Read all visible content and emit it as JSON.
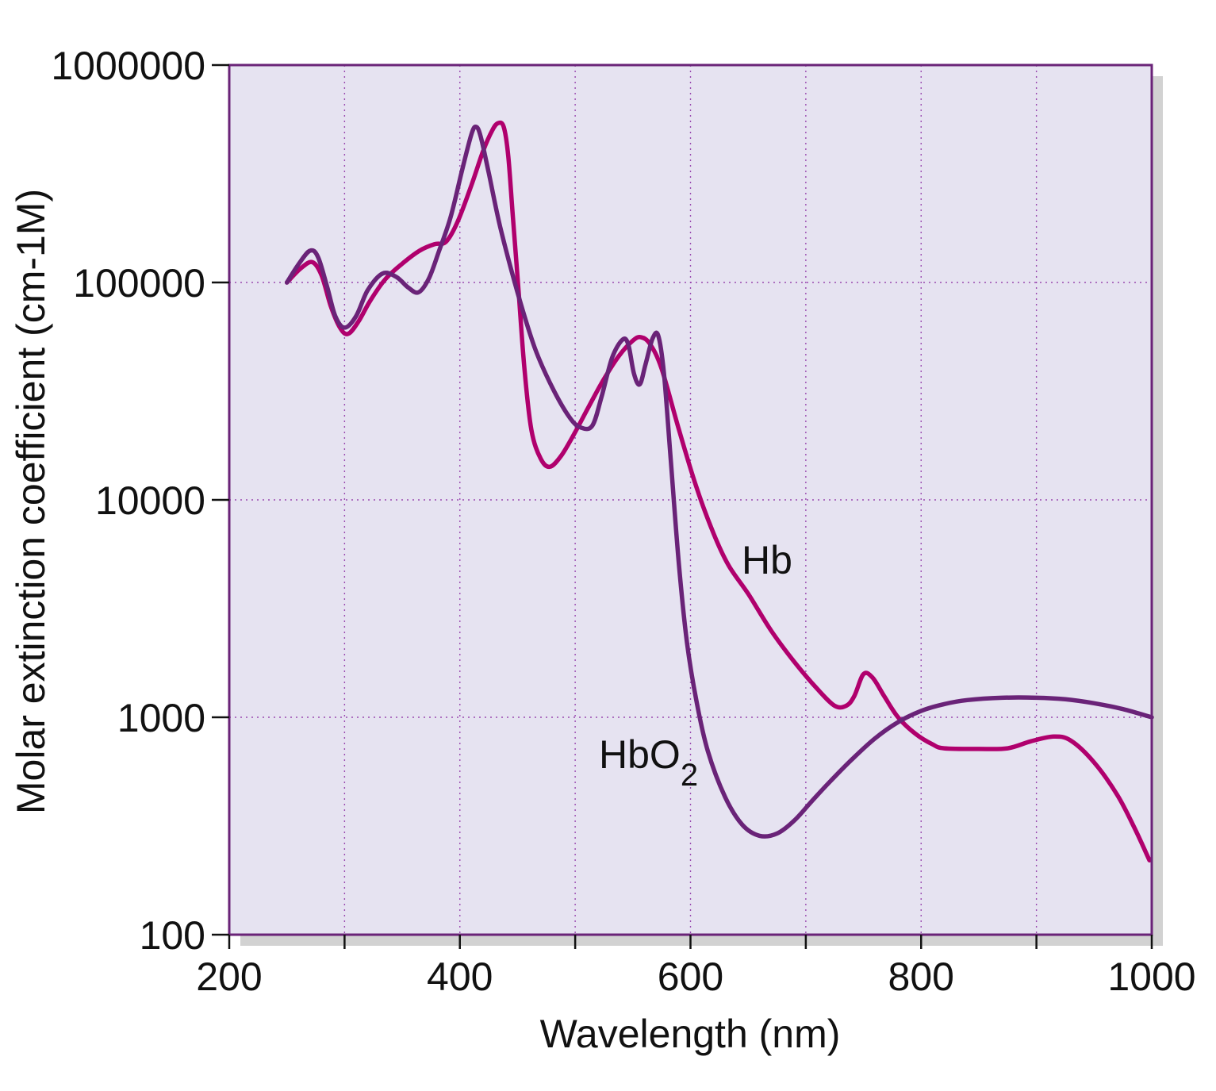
{
  "chart_data": {
    "type": "line",
    "title": "",
    "xlabel": "Wavelength (nm)",
    "ylabel": "Molar extinction coefficient (cm-1M)",
    "xlim": [
      200,
      1000
    ],
    "ylim": [
      100,
      1000000
    ],
    "yscale": "log",
    "grid": true,
    "legend": "none (series labeled directly on curves)",
    "x_ticks": [
      200,
      400,
      600,
      800,
      1000
    ],
    "x_tick_labels": [
      "200",
      "400",
      "600",
      "800",
      "1000"
    ],
    "x_minor_ticks": [
      300,
      500,
      700,
      900
    ],
    "y_ticks": [
      100,
      1000,
      10000,
      100000,
      1000000
    ],
    "y_tick_labels": [
      "100",
      "1000",
      "10000",
      "100000",
      "1000000"
    ],
    "colors": {
      "plot_background": "#e6e3f1",
      "frame": "#6a2378",
      "grid": "#9a4ab0",
      "shadow": "#d2d2d2"
    },
    "series": [
      {
        "name": "HbO2",
        "label_main": "HbO",
        "label_sub": "2",
        "color": "#6a2378",
        "points": [
          [
            250,
            100000
          ],
          [
            260,
            121000
          ],
          [
            270,
            140000
          ],
          [
            277,
            131000
          ],
          [
            285,
            95000
          ],
          [
            292,
            70000
          ],
          [
            300,
            62000
          ],
          [
            310,
            70000
          ],
          [
            320,
            92000
          ],
          [
            333,
            110000
          ],
          [
            345,
            106000
          ],
          [
            355,
            95000
          ],
          [
            364,
            90000
          ],
          [
            373,
            104000
          ],
          [
            382,
            140000
          ],
          [
            392,
            200000
          ],
          [
            402,
            330000
          ],
          [
            410,
            480000
          ],
          [
            414,
            520000
          ],
          [
            418,
            470000
          ],
          [
            425,
            320000
          ],
          [
            435,
            180000
          ],
          [
            450,
            90000
          ],
          [
            465,
            50000
          ],
          [
            480,
            33000
          ],
          [
            495,
            24000
          ],
          [
            505,
            21500
          ],
          [
            515,
            22000
          ],
          [
            523,
            30000
          ],
          [
            532,
            45000
          ],
          [
            541,
            54500
          ],
          [
            546,
            52000
          ],
          [
            551,
            38000
          ],
          [
            556,
            34000
          ],
          [
            561,
            42000
          ],
          [
            567,
            55000
          ],
          [
            572,
            57000
          ],
          [
            577,
            38000
          ],
          [
            583,
            15000
          ],
          [
            590,
            5000
          ],
          [
            597,
            2200
          ],
          [
            605,
            1200
          ],
          [
            615,
            700
          ],
          [
            630,
            430
          ],
          [
            645,
            320
          ],
          [
            660,
            285
          ],
          [
            675,
            292
          ],
          [
            690,
            335
          ],
          [
            705,
            410
          ],
          [
            720,
            500
          ],
          [
            740,
            640
          ],
          [
            760,
            800
          ],
          [
            780,
            950
          ],
          [
            800,
            1070
          ],
          [
            820,
            1150
          ],
          [
            840,
            1200
          ],
          [
            870,
            1230
          ],
          [
            900,
            1230
          ],
          [
            925,
            1210
          ],
          [
            950,
            1160
          ],
          [
            975,
            1090
          ],
          [
            1000,
            1000
          ]
        ]
      },
      {
        "name": "Hb",
        "label_main": "Hb",
        "label_sub": "",
        "color": "#b0006d",
        "points": [
          [
            250,
            100000
          ],
          [
            262,
            116000
          ],
          [
            272,
            124000
          ],
          [
            280,
            108000
          ],
          [
            288,
            78000
          ],
          [
            296,
            62000
          ],
          [
            303,
            58000
          ],
          [
            312,
            66000
          ],
          [
            322,
            82000
          ],
          [
            335,
            103000
          ],
          [
            350,
            122000
          ],
          [
            365,
            140000
          ],
          [
            378,
            150000
          ],
          [
            388,
            154000
          ],
          [
            398,
            190000
          ],
          [
            410,
            280000
          ],
          [
            420,
            400000
          ],
          [
            428,
            500000
          ],
          [
            433,
            540000
          ],
          [
            438,
            520000
          ],
          [
            442,
            380000
          ],
          [
            446,
            200000
          ],
          [
            451,
            90000
          ],
          [
            456,
            40000
          ],
          [
            462,
            21000
          ],
          [
            470,
            15500
          ],
          [
            478,
            14200
          ],
          [
            488,
            16000
          ],
          [
            500,
            20500
          ],
          [
            512,
            27000
          ],
          [
            525,
            36000
          ],
          [
            538,
            46000
          ],
          [
            550,
            54000
          ],
          [
            557,
            56000
          ],
          [
            565,
            52000
          ],
          [
            575,
            40000
          ],
          [
            590,
            21000
          ],
          [
            605,
            11500
          ],
          [
            620,
            7000
          ],
          [
            633,
            5000
          ],
          [
            650,
            3700
          ],
          [
            670,
            2500
          ],
          [
            690,
            1800
          ],
          [
            710,
            1350
          ],
          [
            725,
            1130
          ],
          [
            735,
            1130
          ],
          [
            742,
            1250
          ],
          [
            750,
            1580
          ],
          [
            758,
            1520
          ],
          [
            768,
            1250
          ],
          [
            780,
            1000
          ],
          [
            795,
            840
          ],
          [
            810,
            750
          ],
          [
            820,
            720
          ],
          [
            850,
            715
          ],
          [
            875,
            720
          ],
          [
            895,
            775
          ],
          [
            915,
            815
          ],
          [
            930,
            780
          ],
          [
            950,
            620
          ],
          [
            970,
            440
          ],
          [
            985,
            310
          ],
          [
            998,
            220
          ]
        ]
      }
    ]
  }
}
